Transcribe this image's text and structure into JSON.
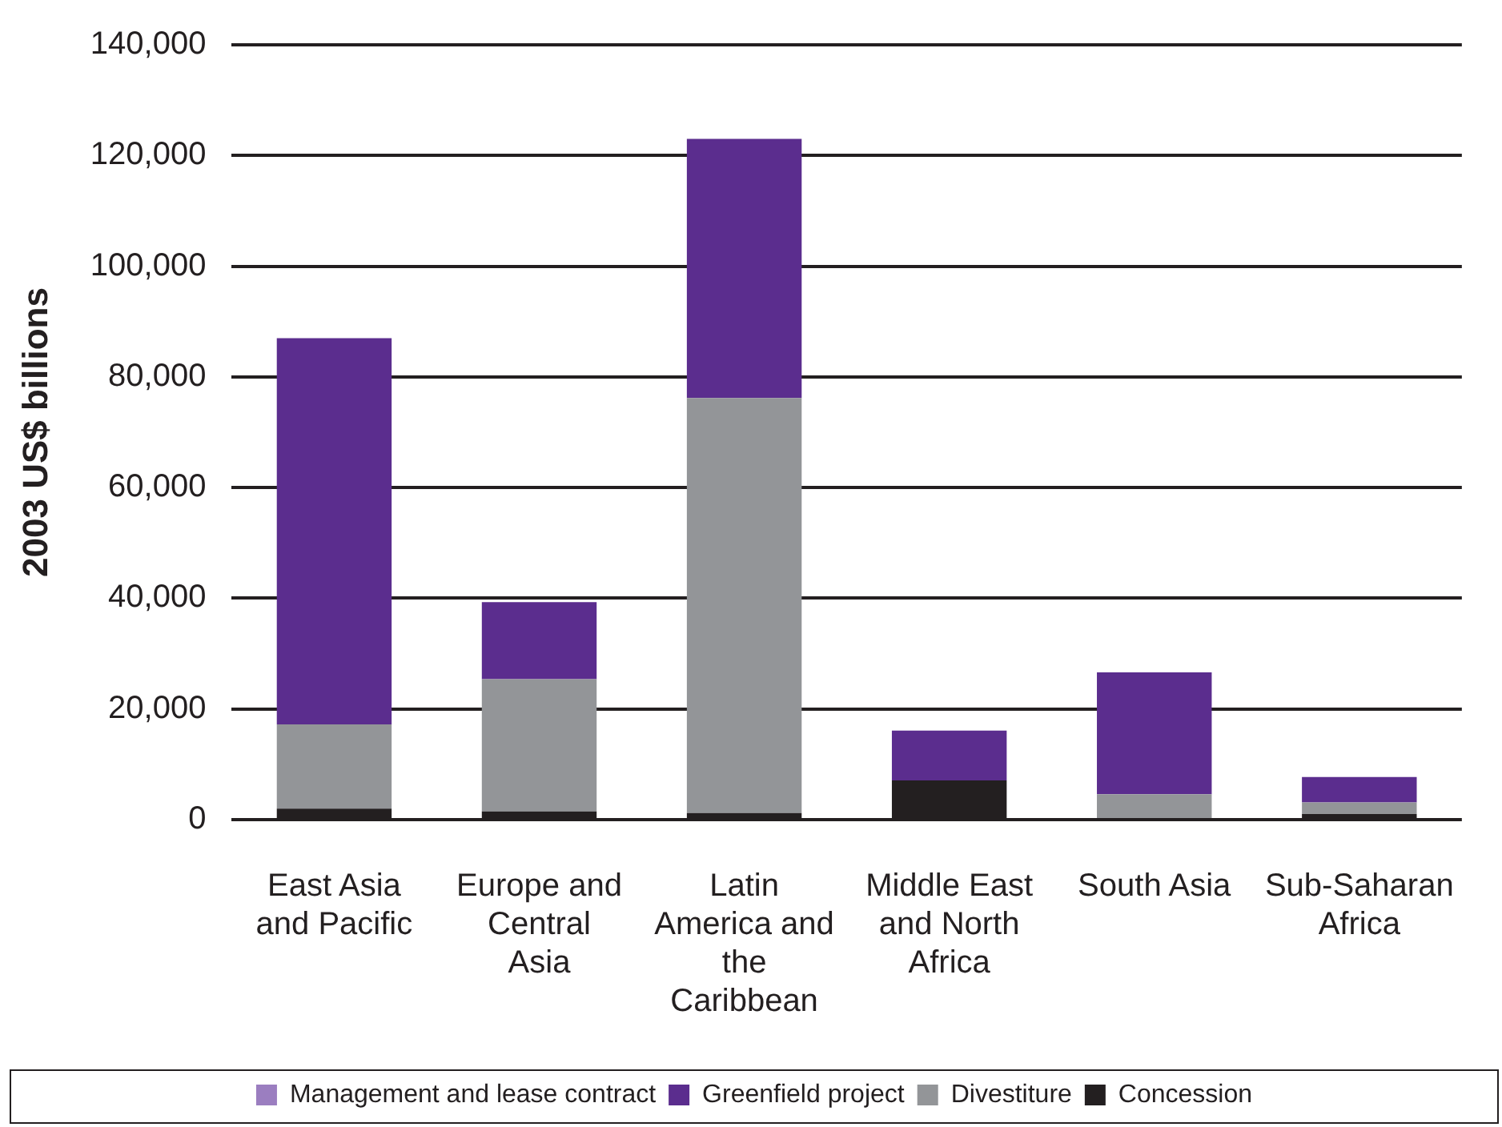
{
  "chart_data": {
    "type": "bar",
    "stacked": true,
    "ylabel": "2003 US$ billions",
    "categories": [
      "East Asia and Pacific",
      "Europe and Central Asia",
      "Latin America and the Caribbean",
      "Middle East and North Africa",
      "South Asia",
      "Sub-Saharan Africa"
    ],
    "series": [
      {
        "name": "Concession",
        "color": "#231f20",
        "values": [
          2000,
          1500,
          1200,
          7100,
          0,
          1000
        ]
      },
      {
        "name": "Divestiture",
        "color": "#939598",
        "values": [
          15200,
          23900,
          75000,
          0,
          4600,
          2100
        ]
      },
      {
        "name": "Greenfield project",
        "color": "#5b2d8e",
        "values": [
          69800,
          13900,
          46800,
          9000,
          22000,
          4600
        ]
      },
      {
        "name": "Management and lease contract",
        "color": "#9b7ec0",
        "values": [
          0,
          0,
          0,
          0,
          0,
          0
        ]
      }
    ],
    "ylim": [
      0,
      140000
    ],
    "yticks": [
      0,
      {
        "value": 20000,
        "label": "20,000"
      },
      {
        "value": 40000,
        "label": "40,000"
      },
      {
        "value": 60000,
        "label": "60,000"
      },
      {
        "value": 80000,
        "label": "80,000"
      },
      {
        "value": 100000,
        "label": "100,000"
      },
      {
        "value": 120000,
        "label": "120,000"
      },
      {
        "value": 140000,
        "label": "140,000"
      }
    ],
    "grid": "y",
    "legend": "bottom"
  }
}
